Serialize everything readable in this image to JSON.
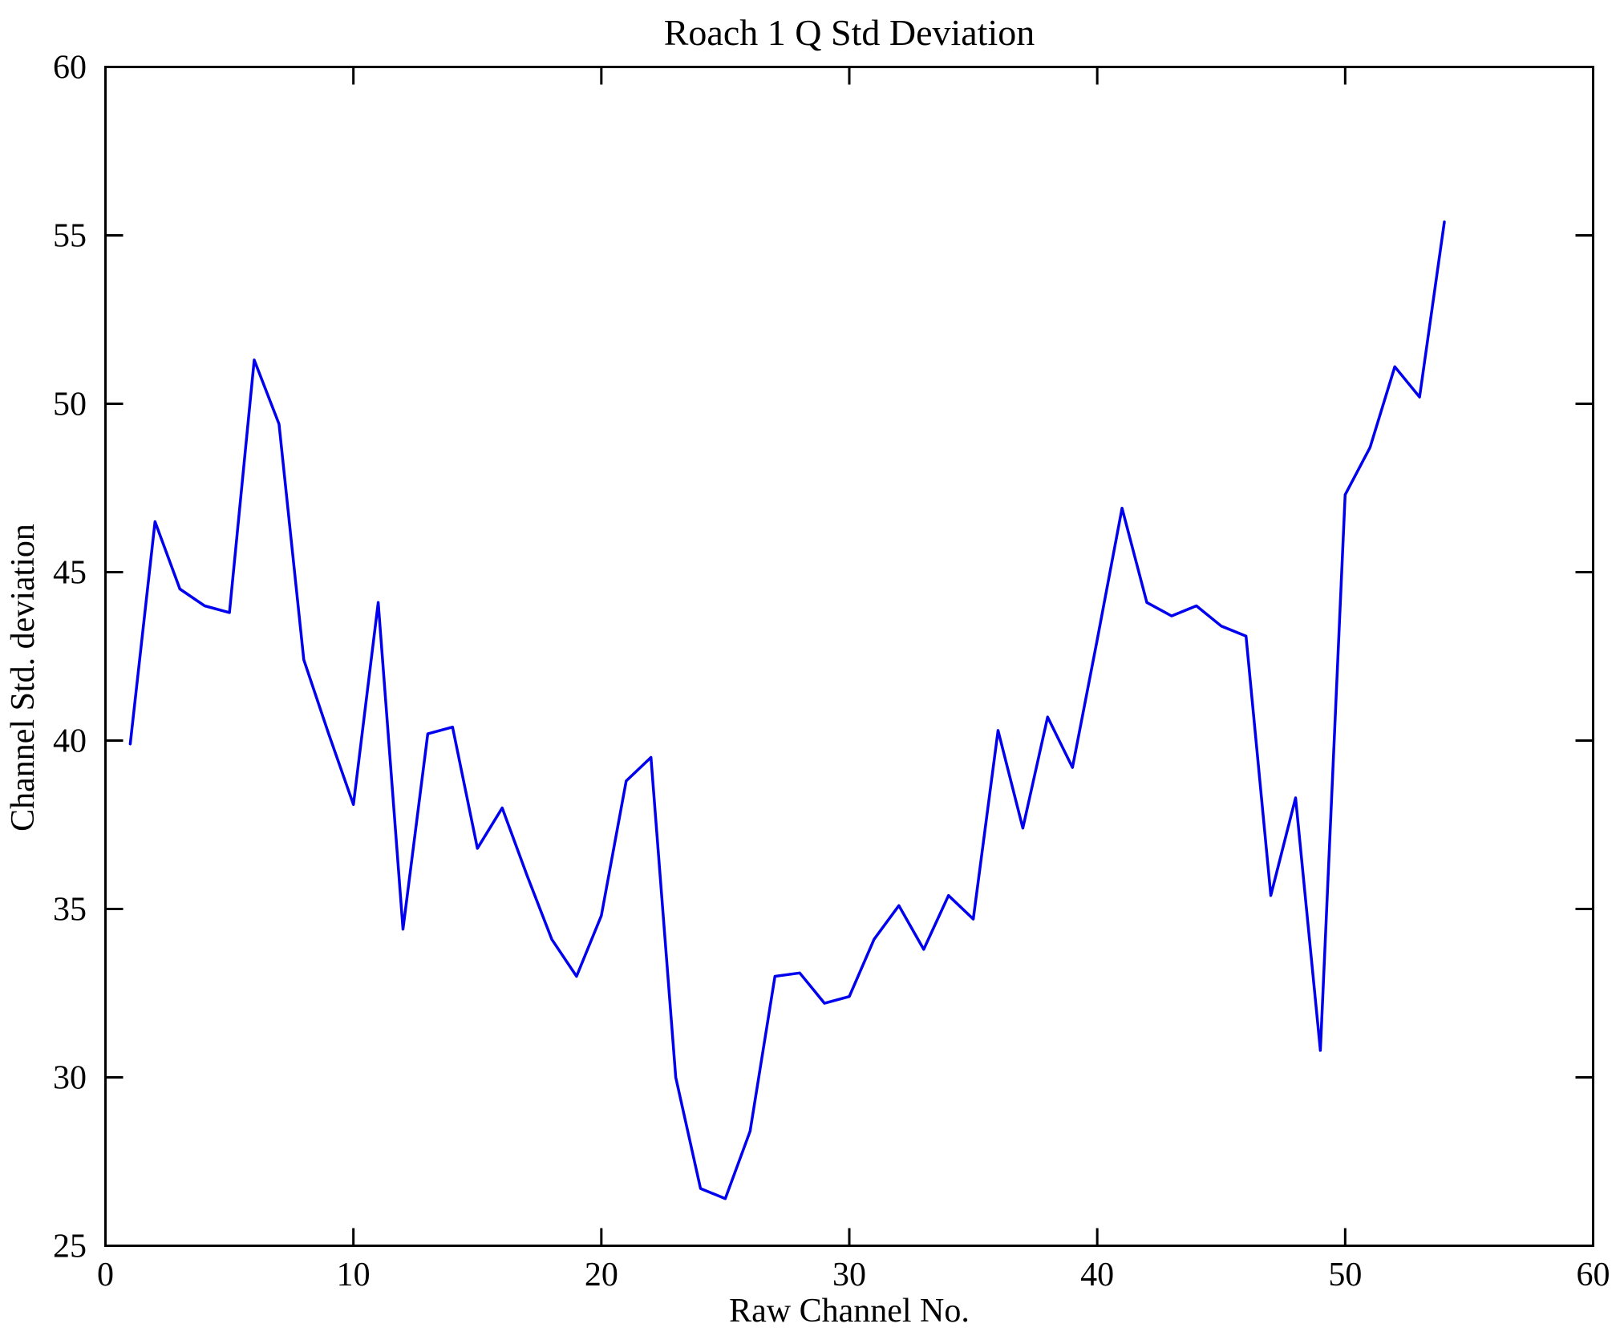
{
  "page": {
    "background": "#ffffff"
  },
  "chart_data": {
    "type": "line",
    "title": "Roach 1 Q Std Deviation",
    "xlabel": "Raw Channel No.",
    "ylabel": "Channel Std. deviation",
    "xlim": [
      0,
      60
    ],
    "ylim": [
      25,
      60
    ],
    "xticks": [
      0,
      10,
      20,
      30,
      40,
      50,
      60
    ],
    "yticks": [
      25,
      30,
      35,
      40,
      45,
      50,
      55,
      60
    ],
    "grid": false,
    "legend_position": "none",
    "box": true,
    "tick_direction": "in",
    "line_color": "#0000EE",
    "axis_color": "#000000",
    "series": [
      {
        "name": "Channel Std deviation",
        "x": [
          1,
          2,
          3,
          4,
          5,
          6,
          7,
          8,
          9,
          10,
          11,
          12,
          13,
          14,
          15,
          16,
          17,
          18,
          19,
          20,
          21,
          22,
          23,
          24,
          25,
          26,
          27,
          28,
          29,
          30,
          31,
          32,
          33,
          34,
          35,
          36,
          37,
          38,
          39,
          40,
          41,
          42,
          43,
          44,
          45,
          46,
          47,
          48,
          49,
          50,
          51,
          52,
          53,
          54
        ],
        "y": [
          39.9,
          46.5,
          44.5,
          44.0,
          43.8,
          51.3,
          49.4,
          42.4,
          40.2,
          38.1,
          44.1,
          34.4,
          40.2,
          40.4,
          36.8,
          38.0,
          36.0,
          34.1,
          33.0,
          34.8,
          38.8,
          39.5,
          30.0,
          26.7,
          26.4,
          28.4,
          33.0,
          33.1,
          32.2,
          32.4,
          34.1,
          35.1,
          33.8,
          35.4,
          34.7,
          40.3,
          37.4,
          40.7,
          39.2,
          43.0,
          46.9,
          44.1,
          43.7,
          44.0,
          43.4,
          43.1,
          35.4,
          38.3,
          30.8,
          47.3,
          48.7,
          51.1,
          50.2,
          55.4
        ]
      }
    ]
  }
}
